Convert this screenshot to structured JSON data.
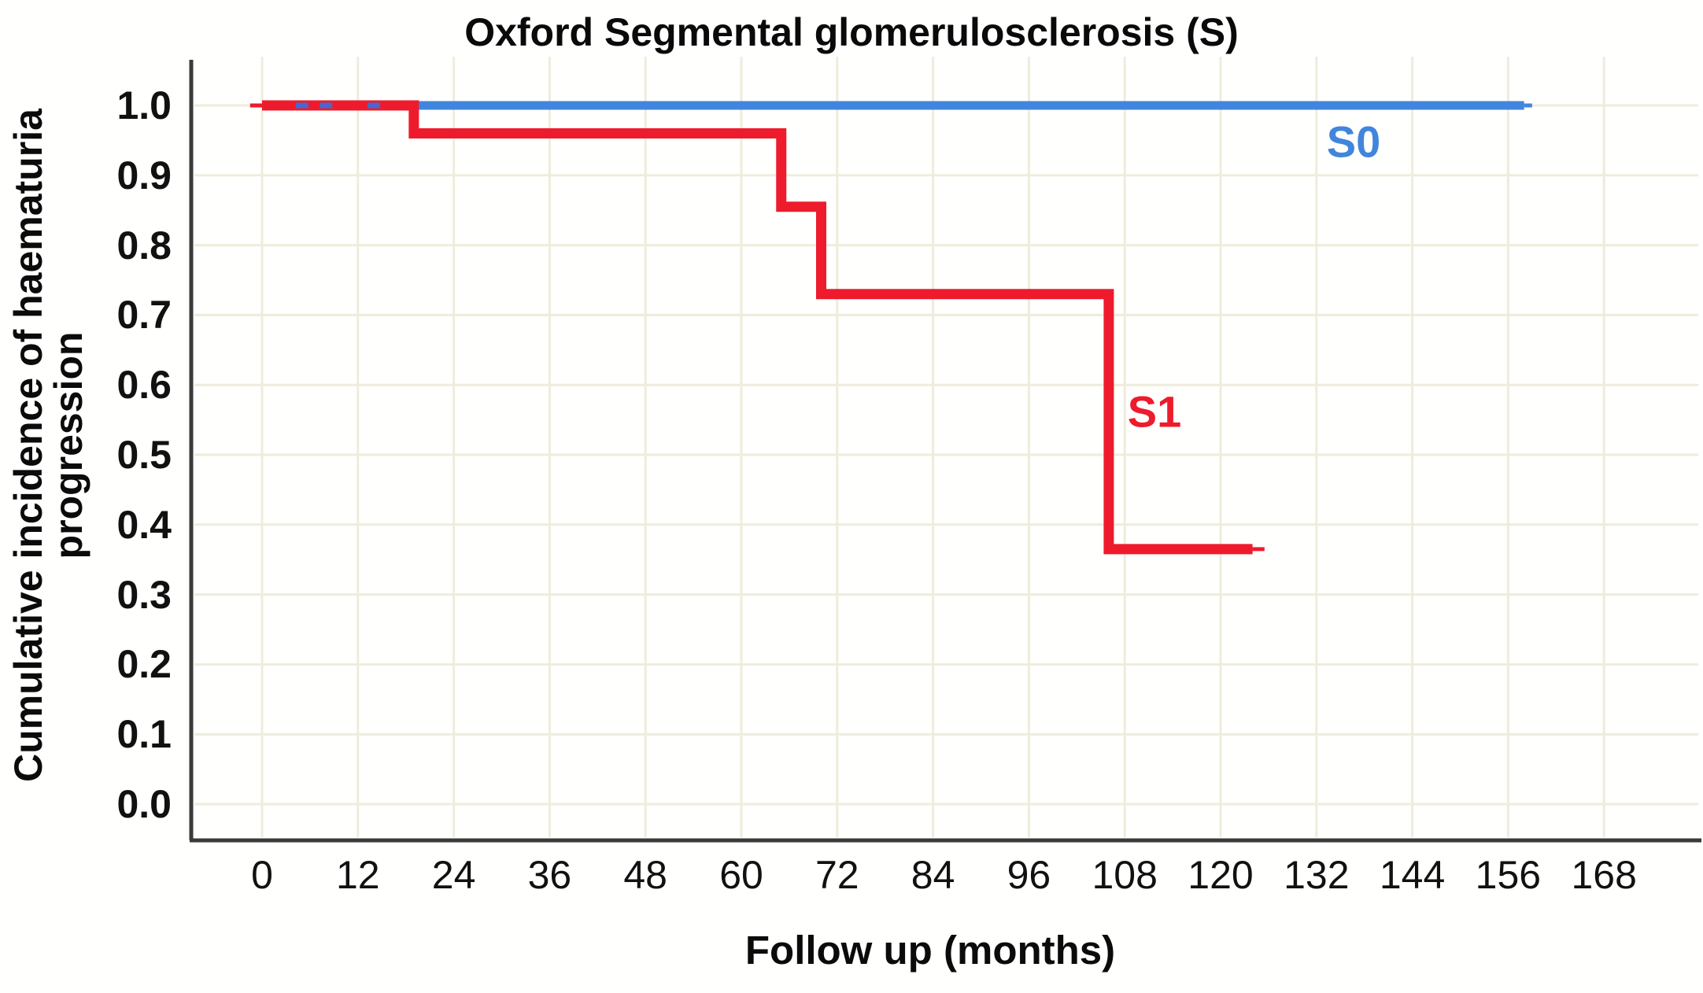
{
  "title": "Oxford Segmental glomerulosclerosis (S)",
  "labels": {
    "s0": "S0",
    "s1": "S1"
  },
  "chart_data": {
    "type": "line",
    "subtype": "kaplan-meier-cumulative-incidence-step",
    "title": "Oxford Segmental glomerulosclerosis (S)",
    "xlabel": "Follow up (months)",
    "ylabel": "Cumulative incidence of haematuria progression",
    "ylabel_lines": [
      "Cumulative incidence of haematuria",
      "progression"
    ],
    "xlim": [
      0,
      168
    ],
    "ylim": [
      0.0,
      1.0
    ],
    "x_ticks": [
      0,
      12,
      24,
      36,
      48,
      60,
      72,
      84,
      96,
      108,
      120,
      132,
      144,
      156,
      168
    ],
    "y_ticks": [
      1.0,
      0.9,
      0.8,
      0.7,
      0.6,
      0.5,
      0.4,
      0.3,
      0.2,
      0.1,
      0.0
    ],
    "grid": true,
    "legend_position": "inline-labels-near-curves",
    "colors": {
      "s0": "#4285dc",
      "s1": "#ee1b2d",
      "censor": "#4569cf",
      "grid": "#f0ecdc",
      "axis": "#3a3a3a",
      "text": "#0b0b0b",
      "background": "#ffffff"
    },
    "series": [
      {
        "name": "S0",
        "color": "#4285dc",
        "steps": [
          [
            0,
            1.0
          ],
          [
            158,
            1.0
          ]
        ],
        "censor_marks_months": [
          5,
          8,
          14
        ],
        "end_tick_month": 159
      },
      {
        "name": "S1",
        "color": "#ee1b2d",
        "steps": [
          [
            0,
            1.0
          ],
          [
            19,
            0.96
          ],
          [
            65,
            0.855
          ],
          [
            70,
            0.73
          ],
          [
            106,
            0.365
          ],
          [
            124,
            0.365
          ]
        ],
        "lead_tick_month_start": -1.5,
        "end_tick_month": 125.5
      }
    ]
  }
}
